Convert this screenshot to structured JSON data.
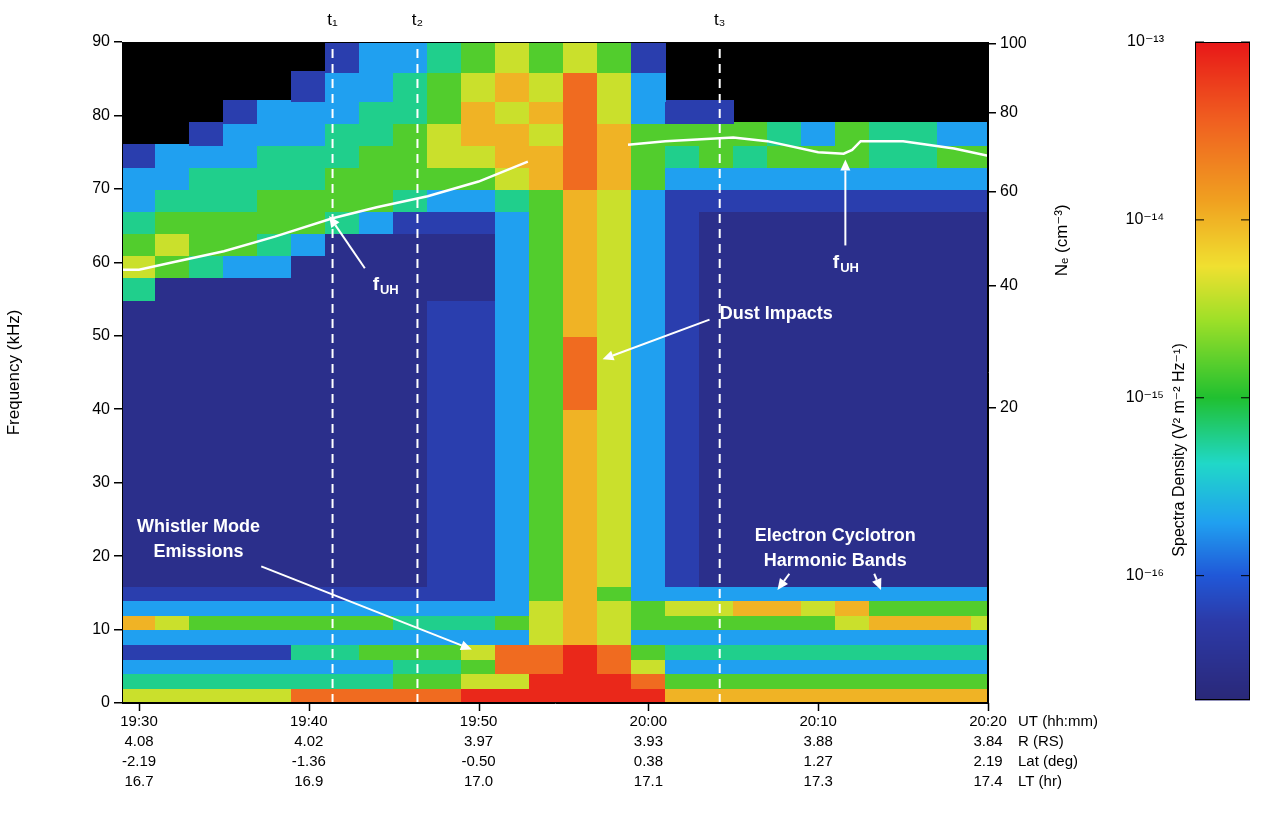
{
  "chart_data": {
    "type": "heatmap",
    "xlabel": "UT (hh:mm)",
    "ylabel": "Frequency (kHz)",
    "y2label": "Nₑ (cm⁻³)",
    "grid": false,
    "xlim": [
      1169,
      1220
    ],
    "xticks": [
      {
        "value": 1170,
        "label": "19:30"
      },
      {
        "value": 1180,
        "label": "19:40"
      },
      {
        "value": 1190,
        "label": "19:50"
      },
      {
        "value": 1200,
        "label": "20:00"
      },
      {
        "value": 1210,
        "label": "20:10"
      },
      {
        "value": 1220,
        "label": "20:20"
      }
    ],
    "x_rows": [
      {
        "name": "R (RS)",
        "values": [
          4.08,
          4.02,
          3.97,
          3.93,
          3.88,
          3.84
        ]
      },
      {
        "name": "Lat (deg)",
        "values": [
          -2.19,
          -1.36,
          {
            "value": -0.5,
            "label": "-0.50"
          },
          0.38,
          1.27,
          2.19
        ]
      },
      {
        "name": "LT (hr)",
        "values": [
          16.7,
          16.9,
          {
            "value": 17,
            "label": "17.0"
          },
          17.1,
          17.3,
          17.4
        ]
      }
    ],
    "ylim": [
      0,
      90
    ],
    "yticks": [
      0,
      10,
      20,
      30,
      40,
      50,
      60,
      70,
      80,
      90
    ],
    "y2lim": [
      0,
      100.4
    ],
    "y2ticks": [
      20,
      40,
      60,
      80,
      100
    ],
    "cell_x": [
      1169,
      1171,
      1173,
      1175,
      1177,
      1179,
      1181,
      1183,
      1185,
      1187,
      1189,
      1191,
      1193,
      1195,
      1197,
      1199,
      1201,
      1203,
      1205,
      1207,
      1209,
      1211,
      1213,
      1215,
      1217,
      1219,
      1220
    ],
    "cell_y": [
      0,
      2,
      4,
      6,
      8,
      10,
      12,
      14,
      16,
      20,
      25,
      30,
      35,
      40,
      45,
      50,
      55,
      58,
      61,
      64,
      67,
      70,
      73,
      76,
      79,
      82,
      86,
      90
    ],
    "cells": [
      [
        4e-15,
        4e-15,
        4e-15,
        4e-15,
        4e-15,
        3e-14,
        3e-14,
        3e-14,
        3e-14,
        3e-14,
        8e-14,
        8e-14,
        8e-14,
        8e-14,
        8e-14,
        8e-14,
        1e-14,
        1e-14,
        1e-14,
        1e-14,
        1e-14,
        1e-14,
        1e-14,
        1e-14,
        1e-14,
        1e-14
      ],
      [
        6e-16,
        6e-16,
        6e-16,
        6e-16,
        6e-16,
        6e-16,
        6e-16,
        6e-16,
        1.5e-15,
        1.5e-15,
        4e-15,
        4e-15,
        8e-14,
        8e-14,
        8e-14,
        3e-14,
        1.5e-15,
        1.5e-15,
        1.5e-15,
        1.5e-15,
        1.5e-15,
        1.5e-15,
        1.5e-15,
        1.5e-15,
        1.5e-15,
        1.5e-15
      ],
      [
        2e-16,
        2e-16,
        2e-16,
        2e-16,
        2e-16,
        2e-16,
        2e-16,
        2e-16,
        6e-16,
        6e-16,
        1.5e-15,
        3e-14,
        3e-14,
        8e-14,
        3e-14,
        4e-15,
        2e-16,
        2e-16,
        2e-16,
        2e-16,
        2e-16,
        2e-16,
        2e-16,
        2e-16,
        2e-16,
        2e-16
      ],
      [
        6e-17,
        6e-17,
        6e-17,
        6e-17,
        6e-17,
        6e-16,
        6e-16,
        1.5e-15,
        1.5e-15,
        1.5e-15,
        4e-15,
        3e-14,
        3e-14,
        8e-14,
        3e-14,
        1.5e-15,
        6e-16,
        6e-16,
        6e-16,
        6e-16,
        6e-16,
        6e-16,
        6e-16,
        6e-16,
        6e-16,
        6e-16
      ],
      [
        2e-16,
        2e-16,
        2e-16,
        2e-16,
        2e-16,
        2e-16,
        2e-16,
        2e-16,
        2e-16,
        2e-16,
        2e-16,
        2e-16,
        4e-15,
        1e-14,
        4e-15,
        2e-16,
        2e-16,
        2e-16,
        2e-16,
        2e-16,
        2e-16,
        2e-16,
        2e-16,
        2e-16,
        2e-16,
        2e-16
      ],
      [
        1e-14,
        4e-15,
        1.5e-15,
        1.5e-15,
        1.5e-15,
        1.5e-15,
        1.5e-15,
        1.5e-15,
        6e-16,
        6e-16,
        6e-16,
        1.5e-15,
        4e-15,
        1e-14,
        4e-15,
        1.5e-15,
        1.5e-15,
        1.5e-15,
        1.5e-15,
        1.5e-15,
        1.5e-15,
        4e-15,
        1e-14,
        1e-14,
        1e-14,
        4e-15
      ],
      [
        2e-16,
        2e-16,
        2e-16,
        2e-16,
        2e-16,
        2e-16,
        2e-16,
        2e-16,
        2e-16,
        2e-16,
        2e-16,
        2e-16,
        4e-15,
        1e-14,
        4e-15,
        1.5e-15,
        4e-15,
        4e-15,
        1e-14,
        1e-14,
        4e-15,
        1e-14,
        1.5e-15,
        1.5e-15,
        1.5e-15,
        1.5e-15
      ],
      [
        6e-17,
        6e-17,
        6e-17,
        6e-17,
        6e-17,
        6e-17,
        6e-17,
        6e-17,
        6e-17,
        6e-17,
        6e-17,
        2e-16,
        1.5e-15,
        1e-14,
        1.5e-15,
        2e-16,
        2e-16,
        2e-16,
        2e-16,
        2e-16,
        2e-16,
        2e-16,
        2e-16,
        2e-16,
        2e-16,
        2e-16
      ],
      [
        3e-17,
        3e-17,
        3e-17,
        3e-17,
        3e-17,
        3e-17,
        3e-17,
        3e-17,
        3e-17,
        6e-17,
        6e-17,
        2e-16,
        1.5e-15,
        1e-14,
        4e-15,
        2e-16,
        6e-17,
        3e-17,
        3e-17,
        3e-17,
        3e-17,
        3e-17,
        3e-17,
        3e-17,
        3e-17,
        3e-17
      ],
      [
        3e-17,
        3e-17,
        3e-17,
        3e-17,
        3e-17,
        3e-17,
        3e-17,
        3e-17,
        3e-17,
        6e-17,
        6e-17,
        2e-16,
        1.5e-15,
        1e-14,
        4e-15,
        2e-16,
        6e-17,
        3e-17,
        3e-17,
        3e-17,
        3e-17,
        3e-17,
        3e-17,
        3e-17,
        3e-17,
        3e-17
      ],
      [
        3e-17,
        3e-17,
        3e-17,
        3e-17,
        3e-17,
        3e-17,
        3e-17,
        3e-17,
        3e-17,
        6e-17,
        6e-17,
        2e-16,
        1.5e-15,
        1e-14,
        4e-15,
        2e-16,
        6e-17,
        3e-17,
        3e-17,
        3e-17,
        3e-17,
        3e-17,
        3e-17,
        3e-17,
        3e-17,
        3e-17
      ],
      [
        3e-17,
        3e-17,
        3e-17,
        3e-17,
        3e-17,
        3e-17,
        3e-17,
        3e-17,
        3e-17,
        6e-17,
        6e-17,
        2e-16,
        1.5e-15,
        1e-14,
        4e-15,
        2e-16,
        6e-17,
        3e-17,
        3e-17,
        3e-17,
        3e-17,
        3e-17,
        3e-17,
        3e-17,
        3e-17,
        3e-17
      ],
      [
        3e-17,
        3e-17,
        3e-17,
        3e-17,
        3e-17,
        3e-17,
        3e-17,
        3e-17,
        3e-17,
        6e-17,
        6e-17,
        2e-16,
        1.5e-15,
        1e-14,
        4e-15,
        2e-16,
        6e-17,
        3e-17,
        3e-17,
        3e-17,
        3e-17,
        3e-17,
        3e-17,
        3e-17,
        3e-17,
        3e-17
      ],
      [
        3e-17,
        3e-17,
        3e-17,
        3e-17,
        3e-17,
        3e-17,
        3e-17,
        3e-17,
        3e-17,
        6e-17,
        6e-17,
        2e-16,
        1.5e-15,
        3e-14,
        4e-15,
        2e-16,
        6e-17,
        3e-17,
        3e-17,
        3e-17,
        3e-17,
        3e-17,
        3e-17,
        3e-17,
        3e-17,
        3e-17
      ],
      [
        3e-17,
        3e-17,
        3e-17,
        3e-17,
        3e-17,
        3e-17,
        3e-17,
        3e-17,
        3e-17,
        6e-17,
        6e-17,
        2e-16,
        1.5e-15,
        3e-14,
        4e-15,
        2e-16,
        6e-17,
        3e-17,
        3e-17,
        3e-17,
        3e-17,
        3e-17,
        3e-17,
        3e-17,
        3e-17,
        3e-17
      ],
      [
        3e-17,
        3e-17,
        3e-17,
        3e-17,
        3e-17,
        3e-17,
        3e-17,
        3e-17,
        3e-17,
        6e-17,
        6e-17,
        2e-16,
        1.5e-15,
        1e-14,
        4e-15,
        2e-16,
        6e-17,
        3e-17,
        3e-17,
        3e-17,
        3e-17,
        3e-17,
        3e-17,
        3e-17,
        3e-17,
        3e-17
      ],
      [
        6e-16,
        3e-17,
        3e-17,
        3e-17,
        3e-17,
        3e-17,
        3e-17,
        3e-17,
        3e-17,
        3e-17,
        3e-17,
        2e-16,
        1.5e-15,
        1e-14,
        4e-15,
        2e-16,
        6e-17,
        3e-17,
        3e-17,
        3e-17,
        3e-17,
        3e-17,
        3e-17,
        3e-17,
        3e-17,
        3e-17
      ],
      [
        4e-15,
        1.5e-15,
        6e-16,
        2e-16,
        2e-16,
        3e-17,
        3e-17,
        3e-17,
        3e-17,
        3e-17,
        3e-17,
        2e-16,
        1.5e-15,
        1e-14,
        4e-15,
        2e-16,
        6e-17,
        3e-17,
        3e-17,
        3e-17,
        3e-17,
        3e-17,
        3e-17,
        3e-17,
        3e-17,
        3e-17
      ],
      [
        1.5e-15,
        4e-15,
        1.5e-15,
        1.5e-15,
        6e-16,
        2e-16,
        3e-17,
        3e-17,
        3e-17,
        3e-17,
        3e-17,
        2e-16,
        1.5e-15,
        1e-14,
        4e-15,
        2e-16,
        6e-17,
        3e-17,
        3e-17,
        3e-17,
        3e-17,
        3e-17,
        3e-17,
        3e-17,
        3e-17,
        3e-17
      ],
      [
        6e-16,
        1.5e-15,
        1.5e-15,
        1.5e-15,
        1.5e-15,
        1.5e-15,
        6e-16,
        2e-16,
        6e-17,
        6e-17,
        6e-17,
        2e-16,
        1.5e-15,
        1e-14,
        4e-15,
        2e-16,
        6e-17,
        3e-17,
        3e-17,
        3e-17,
        3e-17,
        3e-17,
        3e-17,
        3e-17,
        3e-17,
        3e-17
      ],
      [
        2e-16,
        6e-16,
        6e-16,
        6e-16,
        1.5e-15,
        1.5e-15,
        1.5e-15,
        1.5e-15,
        6e-16,
        2e-16,
        2e-16,
        6e-16,
        1.5e-15,
        1e-14,
        4e-15,
        2e-16,
        6e-17,
        6e-17,
        6e-17,
        6e-17,
        6e-17,
        6e-17,
        6e-17,
        6e-17,
        6e-17,
        6e-17
      ],
      [
        2e-16,
        2e-16,
        6e-16,
        6e-16,
        6e-16,
        6e-16,
        1.5e-15,
        1.5e-15,
        1.5e-15,
        1.5e-15,
        1.5e-15,
        4e-15,
        1e-14,
        3e-14,
        1e-14,
        1.5e-15,
        2e-16,
        2e-16,
        2e-16,
        2e-16,
        2e-16,
        2e-16,
        2e-16,
        2e-16,
        2e-16,
        2e-16
      ],
      [
        6e-17,
        2e-16,
        2e-16,
        2e-16,
        6e-16,
        6e-16,
        6e-16,
        1.5e-15,
        1.5e-15,
        4e-15,
        4e-15,
        1e-14,
        1e-14,
        3e-14,
        1e-14,
        1.5e-15,
        6e-16,
        1.5e-15,
        6e-16,
        1.5e-15,
        1.5e-15,
        1.5e-15,
        6e-16,
        6e-16,
        1.5e-15,
        1.5e-15
      ],
      [
        null,
        null,
        6e-17,
        2e-16,
        2e-16,
        2e-16,
        6e-16,
        6e-16,
        1.5e-15,
        4e-15,
        1e-14,
        1e-14,
        4e-15,
        3e-14,
        1e-14,
        1.5e-15,
        1.5e-15,
        1.5e-15,
        1.5e-15,
        6e-16,
        2e-16,
        1.5e-15,
        6e-16,
        6e-16,
        2e-16,
        2e-16
      ],
      [
        null,
        null,
        null,
        6e-17,
        2e-16,
        2e-16,
        2e-16,
        6e-16,
        6e-16,
        1.5e-15,
        1e-14,
        4e-15,
        1e-14,
        3e-14,
        4e-15,
        2e-16,
        6e-17,
        6e-17,
        null,
        null,
        null,
        null,
        null,
        null,
        null,
        null
      ],
      [
        null,
        null,
        null,
        null,
        null,
        6e-17,
        2e-16,
        2e-16,
        6e-16,
        1.5e-15,
        4e-15,
        1e-14,
        4e-15,
        3e-14,
        4e-15,
        2e-16,
        null,
        null,
        null,
        null,
        null,
        null,
        null,
        null,
        null,
        null
      ],
      [
        null,
        null,
        null,
        null,
        null,
        null,
        6e-17,
        2e-16,
        2e-16,
        6e-16,
        1.5e-15,
        4e-15,
        1.5e-15,
        4e-15,
        1.5e-15,
        6e-17,
        null,
        null,
        null,
        null,
        null,
        null,
        null,
        null,
        null,
        null
      ]
    ],
    "colorbar": {
      "label": "Spectra Density (V² m⁻² Hz⁻¹)",
      "range": [
        2e-17,
        1e-13
      ],
      "ticks": [
        {
          "value": 1e-13,
          "label": "10⁻¹³"
        },
        {
          "value": 1e-14,
          "label": "10⁻¹⁴"
        },
        {
          "value": 1e-15,
          "label": "10⁻¹⁵"
        },
        {
          "value": 1e-16,
          "label": "10⁻¹⁶"
        }
      ]
    },
    "series": [
      {
        "name": "fUH",
        "color": "#ffffff",
        "type": "line",
        "x": [
          1169,
          1170,
          1172,
          1175,
          1178,
          1181.4,
          1184,
          1187,
          1190,
          1192.9,
          1196,
          1198.8,
          1201,
          1205,
          1207,
          1210,
          1211.5,
          1212,
          1212.5,
          1215,
          1218,
          1220
        ],
        "values": [
          59,
          59,
          60,
          61.5,
          63.5,
          66,
          67.5,
          69,
          71,
          73.7,
          null,
          76,
          76.5,
          77,
          76.5,
          75,
          74.8,
          75.3,
          76.5,
          76.5,
          75.5,
          74.5
        ]
      }
    ],
    "time_marks": [
      {
        "label": "t₁",
        "value": 1181.4
      },
      {
        "label": "t₂",
        "value": 1186.4
      },
      {
        "label": "t₃",
        "value": 1204.2
      }
    ],
    "annotations": [
      "Dust Impacts",
      "Whistler Mode Emissions",
      "Electron Cyclotron Harmonic Bands"
    ]
  }
}
